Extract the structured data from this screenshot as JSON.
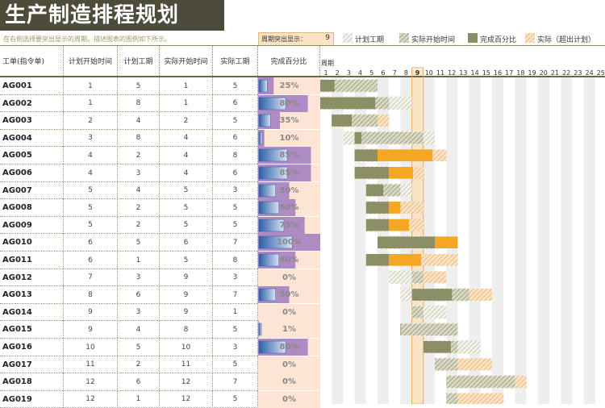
{
  "title": "生产制造排程规划",
  "hint": "在右侧选择要突出显示的周期。描述图表的图例如下所示。",
  "period_label": "周期突出显示：",
  "period_value": 9,
  "legend": [
    {
      "label": "计划工期",
      "style": "hatch-gray"
    },
    {
      "label": "实际开始时间",
      "style": "hatch-olive"
    },
    {
      "label": "完成百分比",
      "style": "solid-olive"
    },
    {
      "label": "实际（超出计划）",
      "style": "hatch-orange"
    }
  ],
  "columns": {
    "job": "工单(指令单)",
    "plan_start": "计划开始时间",
    "plan_dur": "计划工期",
    "actual_start": "实际开始时间",
    "actual_dur": "实际工期",
    "pct": "完成百分比",
    "gantt": "周期"
  },
  "colors": {
    "title_bg": "#4d4b3a",
    "plan_hatch": "#c8c8b0",
    "actual_olive": "#8c8e66",
    "over_orange": "#f5a623",
    "highlight_col": "#fbe3c4",
    "pct_cell_bg": "#fde4d4",
    "pct_bar_blue": "#3d6fb6",
    "pct_purple": "#a07cc0"
  },
  "chart_data": {
    "type": "gantt",
    "periods": [
      1,
      2,
      3,
      4,
      5,
      6,
      7,
      8,
      9,
      10,
      11,
      12,
      13,
      14,
      15,
      16,
      17,
      18,
      19,
      20,
      21,
      22,
      23,
      24,
      25
    ],
    "highlight_period": 9,
    "rows": [
      {
        "job": "AG001",
        "plan_start": 1,
        "plan_dur": 5,
        "actual_start": 1,
        "actual_dur": 5,
        "pct": 25,
        "pct_label": "25%"
      },
      {
        "job": "AG002",
        "plan_start": 1,
        "plan_dur": 8,
        "actual_start": 1,
        "actual_dur": 6,
        "pct": 80,
        "pct_label": "80%"
      },
      {
        "job": "AG003",
        "plan_start": 2,
        "plan_dur": 4,
        "actual_start": 2,
        "actual_dur": 5,
        "pct": 35,
        "pct_label": "35%"
      },
      {
        "job": "AG004",
        "plan_start": 3,
        "plan_dur": 8,
        "actual_start": 4,
        "actual_dur": 6,
        "pct": 10,
        "pct_label": "10%"
      },
      {
        "job": "AG005",
        "plan_start": 4,
        "plan_dur": 2,
        "actual_start": 4,
        "actual_dur": 8,
        "pct": 85,
        "pct_label": "85%"
      },
      {
        "job": "AG006",
        "plan_start": 4,
        "plan_dur": 3,
        "actual_start": 4,
        "actual_dur": 6,
        "pct": 85,
        "pct_label": "85%"
      },
      {
        "job": "AG007",
        "plan_start": 5,
        "plan_dur": 4,
        "actual_start": 5,
        "actual_dur": 3,
        "pct": 50,
        "pct_label": "50%"
      },
      {
        "job": "AG008",
        "plan_start": 5,
        "plan_dur": 2,
        "actual_start": 5,
        "actual_dur": 5,
        "pct": 60,
        "pct_label": "60%"
      },
      {
        "job": "AG009",
        "plan_start": 5,
        "plan_dur": 2,
        "actual_start": 5,
        "actual_dur": 5,
        "pct": 75,
        "pct_label": "75%"
      },
      {
        "job": "AG010",
        "plan_start": 6,
        "plan_dur": 5,
        "actual_start": 6,
        "actual_dur": 7,
        "pct": 100,
        "pct_label": "100%"
      },
      {
        "job": "AG011",
        "plan_start": 6,
        "plan_dur": 1,
        "actual_start": 5,
        "actual_dur": 8,
        "pct": 60,
        "pct_label": "60%"
      },
      {
        "job": "AG012",
        "plan_start": 7,
        "plan_dur": 3,
        "actual_start": 9,
        "actual_dur": 3,
        "pct": 0,
        "pct_label": "0%"
      },
      {
        "job": "AG013",
        "plan_start": 8,
        "plan_dur": 6,
        "actual_start": 9,
        "actual_dur": 7,
        "pct": 50,
        "pct_label": "50%"
      },
      {
        "job": "AG014",
        "plan_start": 9,
        "plan_dur": 3,
        "actual_start": 9,
        "actual_dur": 1,
        "pct": 0,
        "pct_label": "0%"
      },
      {
        "job": "AG015",
        "plan_start": 9,
        "plan_dur": 4,
        "actual_start": 8,
        "actual_dur": 5,
        "pct": 1,
        "pct_label": "1%"
      },
      {
        "job": "AG016",
        "plan_start": 10,
        "plan_dur": 5,
        "actual_start": 10,
        "actual_dur": 3,
        "pct": 80,
        "pct_label": "80%"
      },
      {
        "job": "AG017",
        "plan_start": 11,
        "plan_dur": 2,
        "actual_start": 11,
        "actual_dur": 5,
        "pct": 0,
        "pct_label": "0%"
      },
      {
        "job": "AG018",
        "plan_start": 12,
        "plan_dur": 6,
        "actual_start": 12,
        "actual_dur": 7,
        "pct": 0,
        "pct_label": "0%"
      },
      {
        "job": "AG019",
        "plan_start": 12,
        "plan_dur": 1,
        "actual_start": 12,
        "actual_dur": 5,
        "pct": 0,
        "pct_label": "0%"
      }
    ]
  }
}
